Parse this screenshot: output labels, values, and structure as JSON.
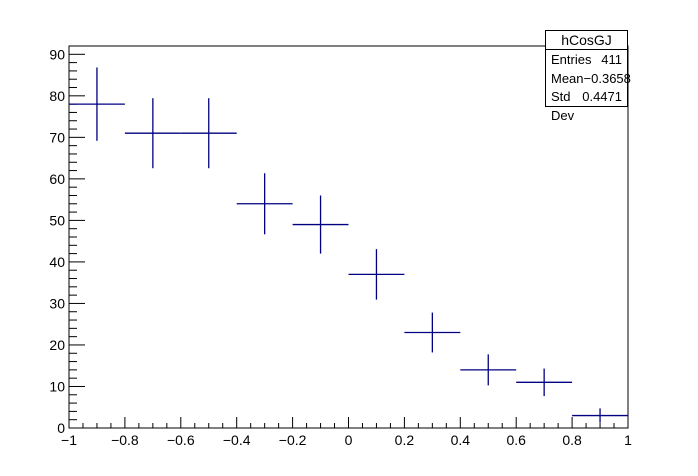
{
  "chart_data": {
    "type": "scatter",
    "style": "histogram error bars",
    "title": "",
    "xlabel": "",
    "ylabel": "",
    "xlim": [
      -1,
      1
    ],
    "ylim": [
      0,
      92
    ],
    "x_ticks": [
      "−1",
      "−0.8",
      "−0.6",
      "−0.4",
      "−0.2",
      "0",
      "0.2",
      "0.4",
      "0.6",
      "0.8",
      "1"
    ],
    "y_ticks": [
      "0",
      "10",
      "20",
      "30",
      "40",
      "50",
      "60",
      "70",
      "80",
      "90"
    ],
    "series": [
      {
        "color": "#000080",
        "x": [
          -0.9,
          -0.7,
          -0.5,
          -0.3,
          -0.1,
          0.1,
          0.3,
          0.5,
          0.7,
          0.9
        ],
        "values": [
          78,
          71,
          71,
          54,
          49,
          37,
          23,
          14,
          11,
          3
        ],
        "errors": [
          8.83,
          8.43,
          8.43,
          7.35,
          7.0,
          6.08,
          4.8,
          3.74,
          3.32,
          1.73
        ],
        "bin_width": 0.2
      }
    ],
    "grid": false
  },
  "stats": {
    "title": "hCosGJ",
    "rows": [
      {
        "label": "Entries",
        "value": "411"
      },
      {
        "label": "Mean",
        "value": "−0.3658"
      },
      {
        "label": "Std Dev",
        "value": "0.4471"
      }
    ]
  }
}
